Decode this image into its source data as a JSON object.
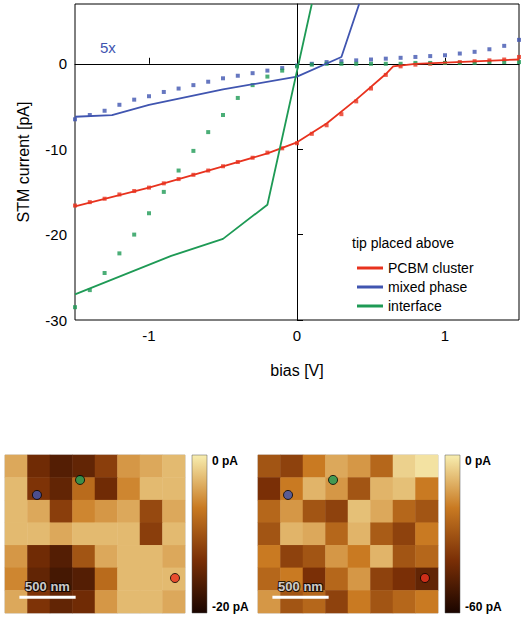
{
  "chart_data": [
    {
      "type": "line",
      "xlabel": "bias [V]",
      "ylabel": "STM current [pA]",
      "xlim": [
        -1.5,
        1.5
      ],
      "ylim": [
        -30,
        7
      ],
      "xticks": [
        -1,
        0,
        1
      ],
      "yticks": [
        -30,
        -20,
        -10,
        0
      ],
      "grid": false,
      "legend": "lower right",
      "legend_title": "tip placed above",
      "annotations": [
        {
          "text": "5x",
          "color": "#4055b0"
        }
      ],
      "series": [
        {
          "name": "PCBM cluster",
          "type": "line",
          "line_style": "solid",
          "color": "#e8321e",
          "x": [
            -1.5,
            -1.0,
            -0.5,
            -0.2,
            0,
            0.2,
            0.4,
            0.6,
            0.65,
            0.8,
            1.5
          ],
          "values": [
            -16.7,
            -14.5,
            -12.0,
            -10.5,
            -9.2,
            -7.0,
            -4.2,
            -1.2,
            -0.3,
            0.0,
            0.5
          ]
        },
        {
          "name": "mixed phase",
          "type": "line",
          "line_style": "solid",
          "color": "#4055b0",
          "x": [
            -1.5,
            -1.25,
            -1.0,
            -0.5,
            0,
            0.3,
            0.42
          ],
          "values": [
            -6.2,
            -6.0,
            -4.8,
            -3.0,
            -1.5,
            0.8,
            7.0
          ]
        },
        {
          "name": "interface",
          "type": "line",
          "line_style": "solid",
          "color": "#1e9a55",
          "x": [
            -1.5,
            -0.85,
            -0.5,
            -0.2,
            0.1
          ],
          "values": [
            -27.0,
            -22.5,
            -20.5,
            -16.5,
            7.0
          ]
        },
        {
          "name": "PCBM cluster",
          "type": "scatter",
          "marker": "square",
          "color": "#e8321e",
          "x": [
            -1.5,
            -1.4,
            -1.3,
            -1.2,
            -1.1,
            -1.0,
            -0.9,
            -0.8,
            -0.7,
            -0.6,
            -0.5,
            -0.4,
            -0.3,
            -0.2,
            -0.1,
            0,
            0.1,
            0.2,
            0.3,
            0.4,
            0.5,
            0.6,
            0.7,
            0.8,
            0.9,
            1.0,
            1.1,
            1.2,
            1.3,
            1.4,
            1.5
          ],
          "values": [
            -16.6,
            -16.2,
            -15.8,
            -15.3,
            -14.9,
            -14.5,
            -14.0,
            -13.5,
            -13.0,
            -12.5,
            -12.0,
            -11.5,
            -11.0,
            -10.4,
            -9.9,
            -9.3,
            -8.2,
            -7.2,
            -5.9,
            -4.4,
            -2.9,
            -1.3,
            -0.3,
            -0.1,
            0.0,
            0.1,
            0.2,
            0.3,
            0.4,
            0.5,
            0.8
          ]
        },
        {
          "name": "mixed phase",
          "type": "scatter",
          "marker": "square",
          "color": "#4055b0",
          "x": [
            -1.5,
            -1.4,
            -1.3,
            -1.2,
            -1.1,
            -1.0,
            -0.9,
            -0.8,
            -0.7,
            -0.6,
            -0.5,
            -0.4,
            -0.3,
            -0.2,
            -0.1,
            0,
            0.1,
            0.2,
            0.3,
            0.4,
            0.5,
            0.6,
            0.7,
            0.8,
            0.9,
            1.0,
            1.1,
            1.2,
            1.3,
            1.4,
            1.5
          ],
          "values": [
            -6.5,
            -6.0,
            -5.5,
            -4.8,
            -4.2,
            -3.8,
            -3.3,
            -2.9,
            -2.5,
            -2.1,
            -1.7,
            -1.4,
            -1.1,
            -0.8,
            -0.5,
            -0.2,
            0.0,
            0.2,
            0.3,
            0.4,
            0.5,
            0.6,
            0.7,
            0.8,
            0.9,
            1.0,
            1.2,
            1.4,
            1.7,
            2.1,
            2.8
          ]
        },
        {
          "name": "interface",
          "type": "scatter",
          "marker": "square",
          "color": "#1e9a55",
          "x": [
            -1.5,
            -1.4,
            -1.3,
            -1.2,
            -1.1,
            -1.0,
            -0.9,
            -0.8,
            -0.7,
            -0.6,
            -0.5,
            -0.4,
            -0.3,
            -0.2,
            -0.1,
            0,
            0.1,
            0.2,
            0.3,
            0.4,
            0.5,
            0.6,
            0.7,
            0.8,
            0.9,
            1.0,
            1.1,
            1.2,
            1.3,
            1.4,
            1.5
          ],
          "values": [
            -28.5,
            -26.5,
            -24.5,
            -22.2,
            -20.0,
            -17.5,
            -15.0,
            -12.5,
            -10.2,
            -8.0,
            -6.0,
            -4.0,
            -2.5,
            -1.5,
            -0.8,
            -0.3,
            -0.1,
            0.0,
            0.0,
            0.0,
            0.0,
            0.0,
            0.0,
            0.1,
            0.1,
            0.1,
            0.1,
            0.1,
            0.2,
            0.2,
            0.2
          ]
        }
      ]
    },
    {
      "type": "heatmap",
      "values": [
        [
          -4,
          -14,
          -16,
          -15,
          -12,
          -5,
          -4,
          -3
        ],
        [
          -3,
          -13,
          -15,
          -8,
          -14,
          -6,
          -3,
          -3
        ],
        [
          -3,
          -4,
          -12,
          -6,
          -5,
          -4,
          -11,
          -4
        ],
        [
          -3,
          -3,
          -4,
          -3,
          -3,
          -3,
          -12,
          -3
        ],
        [
          -5,
          -14,
          -16,
          -10,
          -4,
          -3,
          -3,
          -4
        ],
        [
          -6,
          -15,
          -17,
          -16,
          -8,
          -3,
          -3,
          -3
        ],
        [
          -4,
          -13,
          -15,
          -14,
          -5,
          -3,
          -3,
          -4
        ]
      ],
      "colorbar": {
        "lim": [
          -20,
          0
        ],
        "ticks": [
          {
            "value": 0,
            "label": "0 pA"
          },
          {
            "value": -20,
            "label": "-20 pA"
          }
        ]
      },
      "extent_nm": [
        1600,
        1400
      ],
      "scale_bar": {
        "value": 500,
        "label": "500 nm"
      },
      "points": [
        {
          "color": "#4055b0",
          "x": 284,
          "y": 354
        },
        {
          "color": "#1e9a55",
          "x": 667,
          "y": 221
        },
        {
          "color": "#e8321e",
          "x": 1511,
          "y": 1090
        }
      ]
    },
    {
      "type": "heatmap",
      "values": [
        [
          -30,
          -35,
          -20,
          -12,
          -15,
          -25,
          -5,
          -2
        ],
        [
          -40,
          -20,
          -10,
          -15,
          -30,
          -10,
          -8,
          -20
        ],
        [
          -25,
          -15,
          -30,
          -35,
          -8,
          -12,
          -25,
          -30
        ],
        [
          -30,
          -10,
          -12,
          -25,
          -10,
          -28,
          -35,
          -20
        ],
        [
          -20,
          -35,
          -30,
          -15,
          -20,
          -10,
          -30,
          -25
        ],
        [
          -25,
          -20,
          -40,
          -25,
          -15,
          -35,
          -40,
          -45
        ],
        [
          -15,
          -30,
          -25,
          -35,
          -20,
          -30,
          -25,
          -20
        ]
      ],
      "colorbar": {
        "lim": [
          -60,
          0
        ],
        "ticks": [
          {
            "value": 0,
            "label": "0 pA"
          },
          {
            "value": -60,
            "label": "-60 pA"
          }
        ]
      },
      "extent_nm": [
        1600,
        1400
      ],
      "scale_bar": {
        "value": 500,
        "label": "500 nm"
      },
      "points": [
        {
          "color": "#4055b0",
          "x": 267,
          "y": 354
        },
        {
          "color": "#1e9a55",
          "x": 667,
          "y": 221
        },
        {
          "color": "#e8321e",
          "x": 1484,
          "y": 1090
        }
      ]
    }
  ]
}
